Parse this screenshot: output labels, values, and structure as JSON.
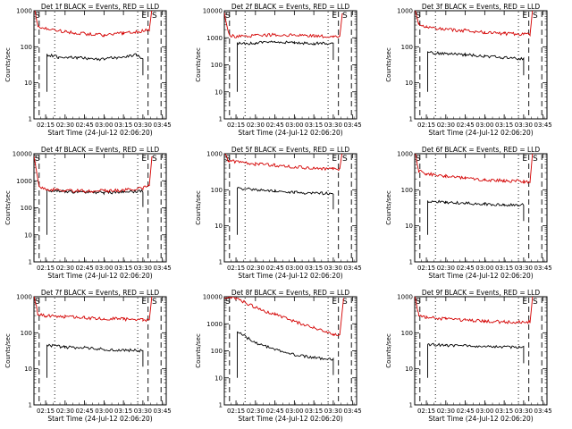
{
  "figure": {
    "background": "#ffffff"
  },
  "chart_data": [
    {
      "type": "line",
      "title": "Det 1f BLACK = Events, RED = LLD",
      "xlabel": "Start Time (24-Jul-12 02:06:20)",
      "ylabel": "Counts/sec",
      "yscale": "log",
      "ylim": [
        1,
        1000
      ],
      "yticks": [
        "1",
        "10",
        "100",
        "1000"
      ],
      "xlim": [
        "02:06",
        "03:48"
      ],
      "xticks": [
        "02:15",
        "02:30",
        "02:45",
        "03:00",
        "03:15",
        "03:30",
        "03:45"
      ],
      "markers": [
        "E",
        "S"
      ],
      "series": [
        {
          "name": "Events",
          "color": "#000000",
          "points": [
            [
              "02:16",
              60
            ],
            [
              "02:25",
              52
            ],
            [
              "02:40",
              50
            ],
            [
              "02:55",
              45
            ],
            [
              "03:10",
              50
            ],
            [
              "03:25",
              60
            ],
            [
              "03:30",
              45
            ]
          ]
        },
        {
          "name": "LLD",
          "color": "#d40000",
          "points": [
            [
              "02:06",
              1200
            ],
            [
              "02:09",
              380
            ],
            [
              "02:15",
              330
            ],
            [
              "02:30",
              260
            ],
            [
              "02:45",
              230
            ],
            [
              "03:00",
              210
            ],
            [
              "03:15",
              240
            ],
            [
              "03:25",
              260
            ],
            [
              "03:35",
              300
            ],
            [
              "03:37",
              1200
            ]
          ]
        }
      ]
    },
    {
      "type": "line",
      "title": "Det 2f BLACK = Events, RED = LLD",
      "xlabel": "Start Time (24-Jul-12 02:06:20)",
      "ylabel": "Counts/sec",
      "yscale": "log",
      "ylim": [
        1,
        10000
      ],
      "yticks": [
        "1",
        "10",
        "100",
        "1000",
        "10000"
      ],
      "xlim": [
        "02:06",
        "03:48"
      ],
      "xticks": [
        "02:15",
        "02:30",
        "02:45",
        "03:00",
        "03:15",
        "03:30",
        "03:45"
      ],
      "markers": [
        "E",
        "S"
      ],
      "series": [
        {
          "name": "Events",
          "color": "#000000",
          "points": [
            [
              "02:16",
              600
            ],
            [
              "02:30",
              650
            ],
            [
              "02:45",
              700
            ],
            [
              "03:00",
              650
            ],
            [
              "03:15",
              620
            ],
            [
              "03:30",
              600
            ]
          ]
        },
        {
          "name": "LLD",
          "color": "#d40000",
          "points": [
            [
              "02:06",
              8000
            ],
            [
              "02:10",
              1200
            ],
            [
              "02:15",
              1100
            ],
            [
              "02:30",
              1200
            ],
            [
              "02:45",
              1300
            ],
            [
              "03:00",
              1250
            ],
            [
              "03:15",
              1150
            ],
            [
              "03:30",
              1100
            ],
            [
              "03:35",
              1100
            ],
            [
              "03:37",
              8000
            ]
          ]
        }
      ]
    },
    {
      "type": "line",
      "title": "Det 3f BLACK = Events, RED = LLD",
      "xlabel": "Start Time (24-Jul-12 02:06:20)",
      "ylabel": "Counts/sec",
      "yscale": "log",
      "ylim": [
        1,
        1000
      ],
      "yticks": [
        "1",
        "10",
        "100",
        "1000"
      ],
      "xlim": [
        "02:06",
        "03:48"
      ],
      "xticks": [
        "02:15",
        "02:30",
        "02:45",
        "03:00",
        "03:15",
        "03:30",
        "03:45"
      ],
      "markers": [
        "E",
        "S"
      ],
      "series": [
        {
          "name": "Events",
          "color": "#000000",
          "points": [
            [
              "02:16",
              70
            ],
            [
              "02:30",
              65
            ],
            [
              "02:45",
              60
            ],
            [
              "03:00",
              55
            ],
            [
              "03:15",
              50
            ],
            [
              "03:30",
              45
            ]
          ]
        },
        {
          "name": "LLD",
          "color": "#d40000",
          "points": [
            [
              "02:06",
              1200
            ],
            [
              "02:09",
              420
            ],
            [
              "02:15",
              360
            ],
            [
              "02:30",
              300
            ],
            [
              "02:45",
              280
            ],
            [
              "03:00",
              250
            ],
            [
              "03:15",
              230
            ],
            [
              "03:30",
              220
            ],
            [
              "03:35",
              220
            ],
            [
              "03:37",
              1200
            ]
          ]
        }
      ]
    },
    {
      "type": "line",
      "title": "Det 4f BLACK = Events, RED = LLD",
      "xlabel": "Start Time (24-Jul-12 02:06:20)",
      "ylabel": "Counts/sec",
      "yscale": "log",
      "ylim": [
        1,
        10000
      ],
      "yticks": [
        "1",
        "10",
        "100",
        "1000",
        "10000"
      ],
      "xlim": [
        "02:06",
        "03:48"
      ],
      "xticks": [
        "02:15",
        "02:30",
        "02:45",
        "03:00",
        "03:15",
        "03:30",
        "03:45"
      ],
      "markers": [
        "E",
        "S"
      ],
      "series": [
        {
          "name": "Events",
          "color": "#000000",
          "points": [
            [
              "02:16",
              450
            ],
            [
              "02:30",
              400
            ],
            [
              "02:45",
              380
            ],
            [
              "03:00",
              360
            ],
            [
              "03:15",
              380
            ],
            [
              "03:30",
              420
            ]
          ]
        },
        {
          "name": "LLD",
          "color": "#d40000",
          "points": [
            [
              "02:06",
              8000
            ],
            [
              "02:10",
              600
            ],
            [
              "02:15",
              480
            ],
            [
              "02:30",
              430
            ],
            [
              "02:45",
              420
            ],
            [
              "03:00",
              420
            ],
            [
              "03:15",
              450
            ],
            [
              "03:30",
              520
            ],
            [
              "03:35",
              700
            ],
            [
              "03:37",
              8000
            ]
          ]
        }
      ]
    },
    {
      "type": "line",
      "title": "Det 5f BLACK = Events, RED = LLD",
      "xlabel": "Start Time (24-Jul-12 02:06:20)",
      "ylabel": "Counts/sec",
      "yscale": "log",
      "ylim": [
        1,
        1000
      ],
      "yticks": [
        "1",
        "10",
        "100",
        "1000"
      ],
      "xlim": [
        "02:06",
        "03:48"
      ],
      "xticks": [
        "02:15",
        "02:30",
        "02:45",
        "03:00",
        "03:15",
        "03:30",
        "03:45"
      ],
      "markers": [
        "E",
        "S"
      ],
      "series": [
        {
          "name": "Events",
          "color": "#000000",
          "points": [
            [
              "02:16",
              110
            ],
            [
              "02:30",
              100
            ],
            [
              "02:45",
              95
            ],
            [
              "03:00",
              85
            ],
            [
              "03:15",
              80
            ],
            [
              "03:30",
              80
            ]
          ]
        },
        {
          "name": "LLD",
          "color": "#d40000",
          "points": [
            [
              "02:06",
              1100
            ],
            [
              "02:09",
              620
            ],
            [
              "02:15",
              600
            ],
            [
              "02:30",
              520
            ],
            [
              "02:45",
              480
            ],
            [
              "03:00",
              430
            ],
            [
              "03:15",
              390
            ],
            [
              "03:30",
              380
            ],
            [
              "03:35",
              380
            ],
            [
              "03:37",
              1100
            ]
          ]
        }
      ]
    },
    {
      "type": "line",
      "title": "Det 6f BLACK = Events, RED = LLD",
      "xlabel": "Start Time (24-Jul-12 02:06:20)",
      "ylabel": "Counts/sec",
      "yscale": "log",
      "ylim": [
        1,
        1000
      ],
      "yticks": [
        "1",
        "10",
        "100",
        "1000"
      ],
      "xlim": [
        "02:06",
        "03:48"
      ],
      "xticks": [
        "02:15",
        "02:30",
        "02:45",
        "03:00",
        "03:15",
        "03:30",
        "03:45"
      ],
      "markers": [
        "E",
        "S"
      ],
      "series": [
        {
          "name": "Events",
          "color": "#000000",
          "points": [
            [
              "02:16",
              48
            ],
            [
              "02:30",
              45
            ],
            [
              "02:45",
              42
            ],
            [
              "03:00",
              40
            ],
            [
              "03:15",
              38
            ],
            [
              "03:30",
              38
            ]
          ]
        },
        {
          "name": "LLD",
          "color": "#d40000",
          "points": [
            [
              "02:06",
              1200
            ],
            [
              "02:09",
              330
            ],
            [
              "02:15",
              280
            ],
            [
              "02:30",
              240
            ],
            [
              "02:45",
              210
            ],
            [
              "03:00",
              190
            ],
            [
              "03:15",
              180
            ],
            [
              "03:30",
              170
            ],
            [
              "03:35",
              170
            ],
            [
              "03:37",
              1200
            ]
          ]
        }
      ]
    },
    {
      "type": "line",
      "title": "Det 7f BLACK = Events, RED = LLD",
      "xlabel": "Start Time (24-Jul-12 02:06:20)",
      "ylabel": "Counts/sec",
      "yscale": "log",
      "ylim": [
        1,
        1000
      ],
      "yticks": [
        "1",
        "10",
        "100",
        "1000"
      ],
      "xlim": [
        "02:06",
        "03:48"
      ],
      "xticks": [
        "02:15",
        "02:30",
        "02:45",
        "03:00",
        "03:15",
        "03:30",
        "03:45"
      ],
      "markers": [
        "E",
        "S"
      ],
      "series": [
        {
          "name": "Events",
          "color": "#000000",
          "points": [
            [
              "02:16",
              45
            ],
            [
              "02:30",
              40
            ],
            [
              "02:45",
              38
            ],
            [
              "03:00",
              35
            ],
            [
              "03:15",
              33
            ],
            [
              "03:30",
              32
            ]
          ]
        },
        {
          "name": "LLD",
          "color": "#d40000",
          "points": [
            [
              "02:06",
              1100
            ],
            [
              "02:09",
              330
            ],
            [
              "02:15",
              300
            ],
            [
              "02:30",
              280
            ],
            [
              "02:45",
              260
            ],
            [
              "03:00",
              250
            ],
            [
              "03:15",
              240
            ],
            [
              "03:30",
              230
            ],
            [
              "03:35",
              230
            ],
            [
              "03:37",
              1100
            ]
          ]
        }
      ]
    },
    {
      "type": "line",
      "title": "Det 8f BLACK = Events, RED = LLD",
      "xlabel": "Start Time (24-Jul-12 02:06:20)",
      "ylabel": "Counts/sec",
      "yscale": "log",
      "ylim": [
        1,
        10000
      ],
      "yticks": [
        "1",
        "10",
        "100",
        "1000",
        "10000"
      ],
      "xlim": [
        "02:06",
        "03:48"
      ],
      "xticks": [
        "02:15",
        "02:30",
        "02:45",
        "03:00",
        "03:15",
        "03:30",
        "03:45"
      ],
      "markers": [
        "E",
        "S"
      ],
      "series": [
        {
          "name": "Events",
          "color": "#000000",
          "points": [
            [
              "02:16",
              500
            ],
            [
              "02:30",
              200
            ],
            [
              "02:45",
              110
            ],
            [
              "03:00",
              70
            ],
            [
              "03:15",
              55
            ],
            [
              "03:30",
              50
            ]
          ]
        },
        {
          "name": "LLD",
          "color": "#d40000",
          "points": [
            [
              "02:06",
              9000
            ],
            [
              "02:15",
              9000
            ],
            [
              "02:30",
              4000
            ],
            [
              "02:45",
              2200
            ],
            [
              "03:00",
              1200
            ],
            [
              "03:15",
              700
            ],
            [
              "03:30",
              400
            ],
            [
              "03:35",
              380
            ],
            [
              "03:38",
              9000
            ]
          ]
        }
      ]
    },
    {
      "type": "line",
      "title": "Det 9f BLACK = Events, RED = LLD",
      "xlabel": "Start Time (24-Jul-12 02:06:20)",
      "ylabel": "Counts/sec",
      "yscale": "log",
      "ylim": [
        1,
        1000
      ],
      "yticks": [
        "1",
        "10",
        "100",
        "1000"
      ],
      "xlim": [
        "02:06",
        "03:48"
      ],
      "xticks": [
        "02:15",
        "02:30",
        "02:45",
        "03:00",
        "03:15",
        "03:30",
        "03:45"
      ],
      "markers": [
        "E",
        "S"
      ],
      "series": [
        {
          "name": "Events",
          "color": "#000000",
          "points": [
            [
              "02:16",
              48
            ],
            [
              "02:30",
              45
            ],
            [
              "02:45",
              44
            ],
            [
              "03:00",
              42
            ],
            [
              "03:15",
              40
            ],
            [
              "03:30",
              40
            ]
          ]
        },
        {
          "name": "LLD",
          "color": "#d40000",
          "points": [
            [
              "02:06",
              1100
            ],
            [
              "02:09",
              320
            ],
            [
              "02:15",
              270
            ],
            [
              "02:30",
              240
            ],
            [
              "02:45",
              220
            ],
            [
              "03:00",
              210
            ],
            [
              "03:15",
              200
            ],
            [
              "03:30",
              200
            ],
            [
              "03:35",
              200
            ],
            [
              "03:37",
              1100
            ]
          ]
        }
      ]
    }
  ]
}
